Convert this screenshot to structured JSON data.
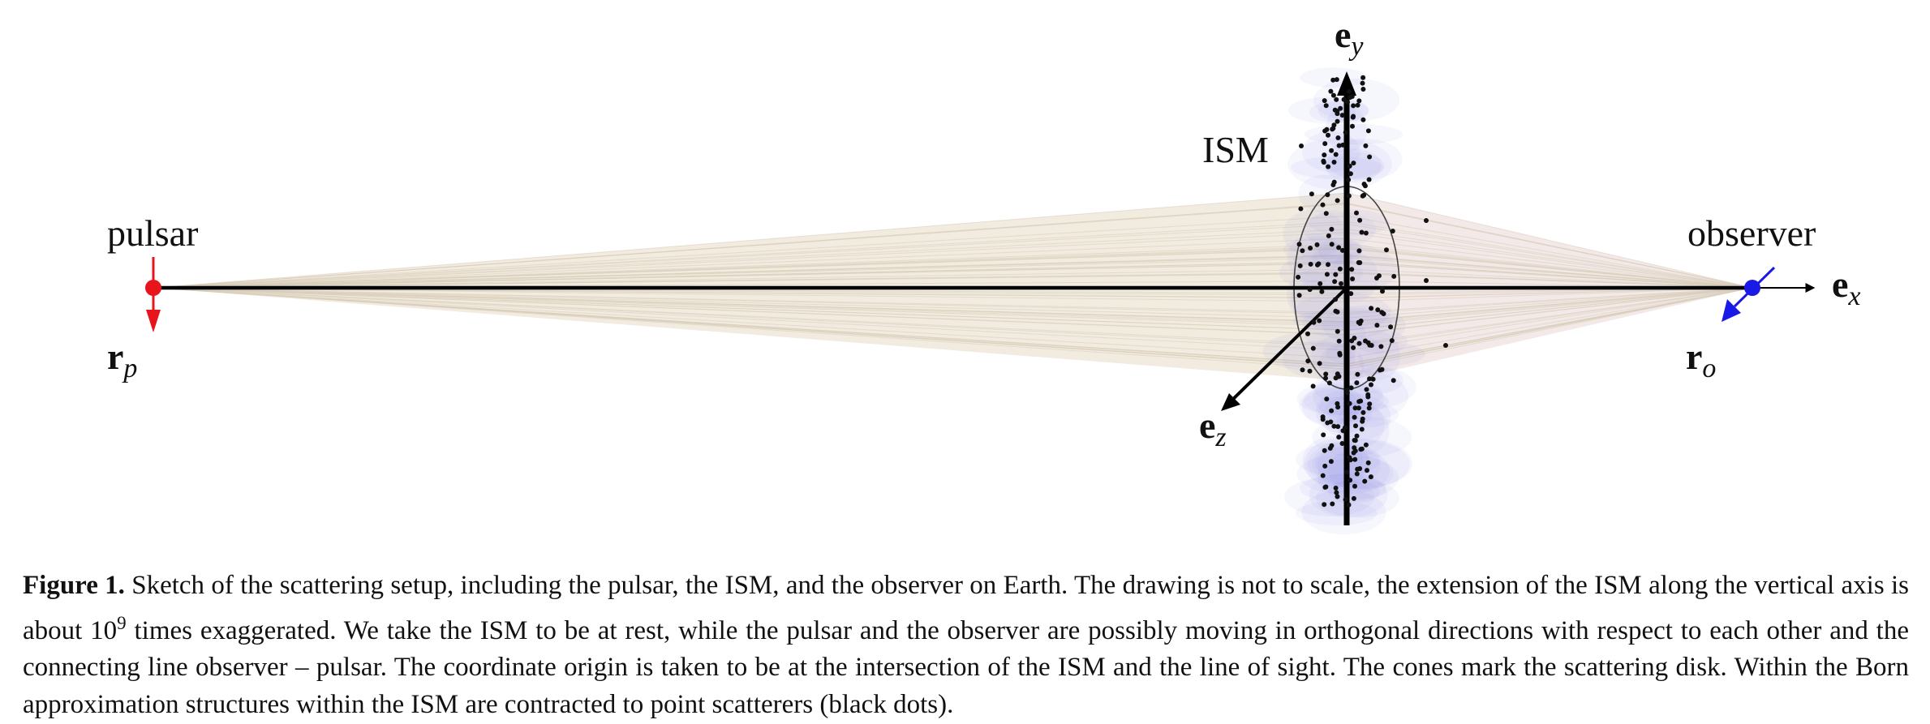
{
  "figure": {
    "labels": {
      "pulsar": "pulsar",
      "observer": "observer",
      "ism": "ISM",
      "r_p": {
        "base": "r",
        "sub": "p"
      },
      "r_o": {
        "base": "r",
        "sub": "o"
      },
      "e_x": {
        "base": "e",
        "sub": "x"
      },
      "e_y": {
        "base": "e",
        "sub": "y"
      },
      "e_z": {
        "base": "e",
        "sub": "z"
      }
    },
    "colors": {
      "pulsar": "#e8141b",
      "observer": "#1a1ae6",
      "cone_fill": "#e9e0cd",
      "cone_lines": "#d8cdb8",
      "ism_blob": "#8c8ce6",
      "scatterer": "#111111",
      "axis": "#000000"
    }
  },
  "caption": {
    "label": "Figure 1.",
    "text_before_sup": " Sketch of the scattering setup, including the pulsar, the ISM, and the observer on Earth. The drawing is not to scale, the extension of the ISM along the vertical axis is about 10",
    "sup": "9",
    "text_after_sup": " times exaggerated. We take the ISM to be at rest, while the pulsar and the observer are possibly moving in orthogonal directions with respect to each other and the connecting line observer – pulsar. The coordinate origin is taken to be at the intersection of the ISM and the line of sight. The cones mark the scattering disk. Within the Born approximation structures within the ISM are contracted to point scatterers (black dots)."
  }
}
